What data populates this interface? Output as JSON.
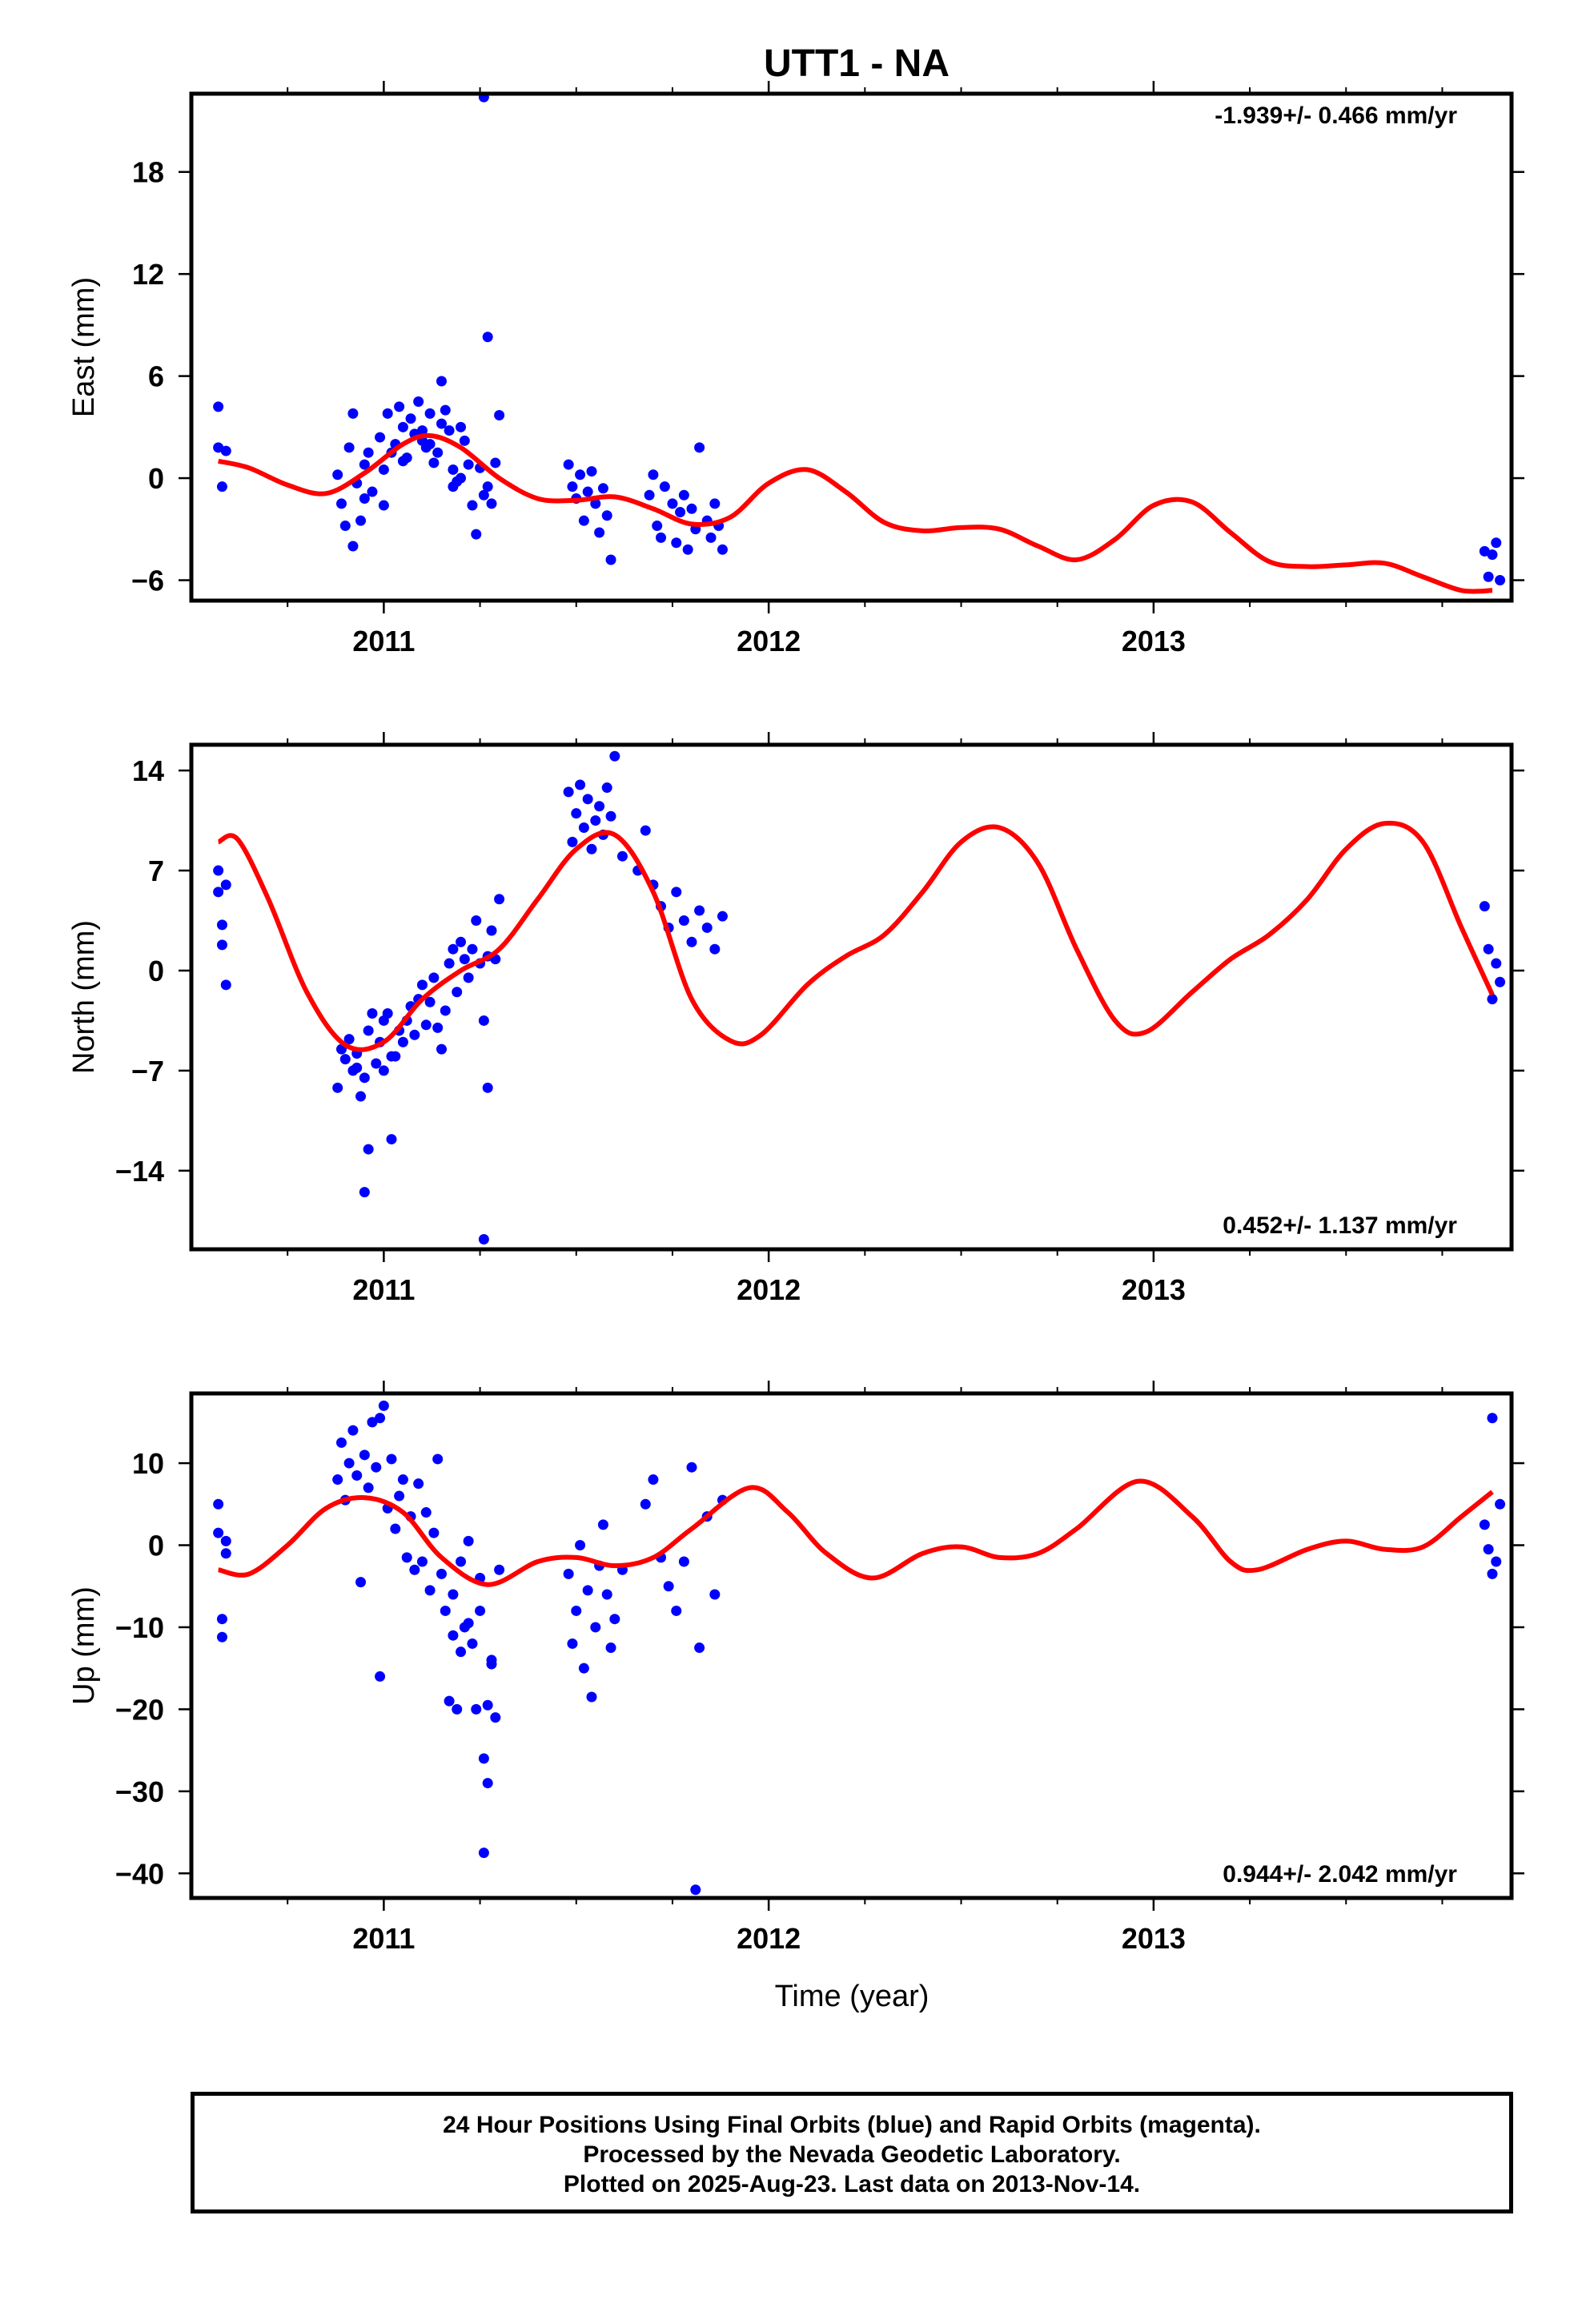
{
  "title": "UTT1 - NA",
  "xlabel": "Time (year)",
  "colors": {
    "points": "#0000ff",
    "model": "#ff0000",
    "axes": "#000000"
  },
  "footer": {
    "line1": "24 Hour Positions Using Final Orbits (blue) and Rapid Orbits (magenta).",
    "line2": "Processed by the Nevada Geodetic Laboratory.",
    "line3": "Plotted on 2025-Aug-23. Last data on 2013-Nov-14."
  },
  "chart_data": [
    {
      "type": "scatter",
      "ylabel": "East (mm)",
      "annotation": "-1.939+/- 0.466 mm/yr",
      "annotation_position": "top-right",
      "xlim": [
        2010.5,
        2013.93
      ],
      "ylim": [
        -7.2,
        22.6
      ],
      "yticks": [
        -6,
        0,
        6,
        12,
        18
      ],
      "xticks": [
        2011,
        2012,
        2013
      ],
      "series": [
        {
          "role": "observations",
          "color": "#0000ff",
          "x": [
            2010.57,
            2010.57,
            2010.58,
            2010.59,
            2010.88,
            2010.89,
            2010.9,
            2010.91,
            2010.92,
            2010.93,
            2010.94,
            2010.95,
            2010.96,
            2010.97,
            2010.99,
            2011.0,
            2011.01,
            2011.02,
            2011.03,
            2011.04,
            2011.05,
            2011.06,
            2011.07,
            2011.08,
            2011.09,
            2011.1,
            2011.11,
            2011.12,
            2011.13,
            2011.14,
            2011.15,
            2011.16,
            2011.17,
            2011.18,
            2011.19,
            2011.2,
            2011.21,
            2011.22,
            2011.23,
            2011.24,
            2011.25,
            2011.26,
            2011.27,
            2011.28,
            2011.29,
            2011.3,
            2011.26,
            2011.27,
            2011.48,
            2011.49,
            2011.5,
            2011.51,
            2011.52,
            2011.53,
            2011.54,
            2011.55,
            2011.56,
            2011.57,
            2011.58,
            2011.59,
            2011.69,
            2011.7,
            2011.71,
            2011.72,
            2011.73,
            2011.75,
            2011.76,
            2011.77,
            2011.78,
            2011.79,
            2011.8,
            2011.81,
            2011.82,
            2011.84,
            2011.85,
            2011.86,
            2011.87,
            2011.88,
            2013.86,
            2013.87,
            2013.88,
            2013.89,
            2013.9,
            2011.0,
            2011.05,
            2011.1,
            2011.15,
            2011.2,
            2010.92,
            2010.95,
            2011.12,
            2011.18
          ],
          "y": [
            1.8,
            4.2,
            -0.5,
            1.6,
            0.2,
            -1.5,
            -2.8,
            1.8,
            -4.0,
            -0.3,
            -2.5,
            0.8,
            1.5,
            -0.8,
            2.4,
            -1.6,
            3.8,
            1.5,
            2.0,
            4.2,
            3.0,
            1.2,
            3.5,
            2.6,
            4.5,
            2.8,
            1.8,
            3.8,
            0.9,
            1.5,
            5.7,
            4.0,
            2.8,
            0.5,
            -0.2,
            3.0,
            2.2,
            0.8,
            -1.6,
            -3.3,
            0.6,
            -1.0,
            -0.5,
            -1.5,
            0.9,
            3.7,
            22.4,
            8.3,
            0.8,
            -0.5,
            -1.2,
            0.2,
            -2.5,
            -0.8,
            0.4,
            -1.5,
            -3.2,
            -0.6,
            -2.2,
            -4.8,
            -1.0,
            0.2,
            -2.8,
            -3.5,
            -0.5,
            -1.5,
            -3.8,
            -2.0,
            -1.0,
            -4.2,
            -1.8,
            -3.0,
            1.8,
            -2.5,
            -3.5,
            -1.5,
            -2.8,
            -4.2,
            -4.3,
            -5.8,
            -4.5,
            -3.8,
            -6.0,
            0.5,
            1.0,
            2.2,
            3.2,
            0.0,
            3.8,
            -1.2,
            2.0,
            -0.5
          ]
        },
        {
          "role": "model",
          "color": "#ff0000",
          "x": [
            2010.57,
            2010.65,
            2010.75,
            2010.85,
            2010.95,
            2011.05,
            2011.12,
            2011.2,
            2011.3,
            2011.4,
            2011.5,
            2011.6,
            2011.7,
            2011.8,
            2011.9,
            2012.0,
            2012.1,
            2012.2,
            2012.3,
            2012.4,
            2012.5,
            2012.6,
            2012.7,
            2012.8,
            2012.9,
            2013.0,
            2013.1,
            2013.2,
            2013.3,
            2013.4,
            2013.5,
            2013.6,
            2013.7,
            2013.8,
            2013.88
          ],
          "y": [
            1.0,
            0.6,
            -0.4,
            -0.9,
            0.3,
            2.0,
            2.5,
            1.8,
            0.0,
            -1.2,
            -1.3,
            -1.1,
            -1.8,
            -2.7,
            -2.3,
            -0.3,
            0.5,
            -0.8,
            -2.6,
            -3.1,
            -2.9,
            -3.0,
            -4.0,
            -4.8,
            -3.6,
            -1.6,
            -1.4,
            -3.2,
            -4.9,
            -5.2,
            -5.1,
            -5.0,
            -5.8,
            -6.6,
            -6.6
          ]
        }
      ]
    },
    {
      "type": "scatter",
      "ylabel": "North (mm)",
      "annotation": "0.452+/- 1.137 mm/yr",
      "annotation_position": "bottom-right",
      "xlim": [
        2010.5,
        2013.93
      ],
      "ylim": [
        -19.5,
        15.8
      ],
      "yticks": [
        -14,
        -7,
        0,
        7,
        14
      ],
      "xticks": [
        2011,
        2012,
        2013
      ],
      "series": [
        {
          "role": "observations",
          "color": "#0000ff",
          "x": [
            2010.57,
            2010.57,
            2010.58,
            2010.58,
            2010.59,
            2010.59,
            2010.88,
            2010.89,
            2010.9,
            2010.91,
            2010.92,
            2010.93,
            2010.94,
            2010.95,
            2010.96,
            2010.97,
            2010.98,
            2010.99,
            2011.0,
            2011.01,
            2011.02,
            2011.03,
            2011.04,
            2011.05,
            2011.06,
            2011.07,
            2011.08,
            2011.09,
            2011.1,
            2011.11,
            2011.12,
            2011.13,
            2011.14,
            2011.15,
            2011.16,
            2011.17,
            2011.18,
            2011.19,
            2011.2,
            2011.21,
            2011.22,
            2011.23,
            2011.24,
            2011.25,
            2011.26,
            2011.27,
            2011.28,
            2011.29,
            2011.3,
            2011.26,
            2011.27,
            2011.48,
            2011.49,
            2011.5,
            2011.51,
            2011.52,
            2011.53,
            2011.54,
            2011.55,
            2011.56,
            2011.57,
            2011.58,
            2011.59,
            2011.6,
            2011.62,
            2011.66,
            2011.68,
            2011.7,
            2011.72,
            2011.74,
            2011.76,
            2011.78,
            2011.8,
            2011.82,
            2011.84,
            2011.86,
            2011.88,
            2013.86,
            2013.87,
            2013.88,
            2013.89,
            2013.9,
            2010.93,
            2010.96,
            2011.0,
            2011.02,
            2010.95
          ],
          "y": [
            7.0,
            5.5,
            3.2,
            1.8,
            6.0,
            -1.0,
            -8.2,
            -5.5,
            -6.2,
            -4.8,
            -7.0,
            -5.8,
            -8.8,
            -15.5,
            -12.5,
            -3.0,
            -6.5,
            -5.0,
            -7.0,
            -3.0,
            -11.8,
            -6.0,
            -4.2,
            -5.0,
            -3.5,
            -2.5,
            -4.5,
            -2.0,
            -1.0,
            -3.8,
            -2.2,
            -0.5,
            -4.0,
            -5.5,
            -2.8,
            0.5,
            1.5,
            -1.5,
            2.0,
            0.8,
            -0.5,
            1.5,
            3.5,
            0.5,
            -3.5,
            -8.2,
            2.8,
            0.8,
            5.0,
            -18.8,
            1.0,
            12.5,
            9.0,
            11.0,
            13.0,
            10.0,
            12.0,
            8.5,
            10.5,
            11.5,
            9.5,
            12.8,
            10.8,
            15.0,
            8.0,
            7.0,
            9.8,
            6.0,
            4.5,
            3.0,
            5.5,
            3.5,
            2.0,
            4.2,
            3.0,
            1.5,
            3.8,
            4.5,
            1.5,
            -2.0,
            0.5,
            -0.8,
            -6.8,
            -4.2,
            -3.5,
            -6.0,
            -7.5
          ]
        },
        {
          "role": "model",
          "color": "#ff0000",
          "x": [
            2010.57,
            2010.62,
            2010.7,
            2010.8,
            2010.9,
            2011.0,
            2011.1,
            2011.2,
            2011.3,
            2011.4,
            2011.5,
            2011.6,
            2011.7,
            2011.8,
            2011.9,
            2011.98,
            2012.1,
            2012.2,
            2012.3,
            2012.4,
            2012.5,
            2012.6,
            2012.7,
            2012.8,
            2012.9,
            2012.98,
            2013.1,
            2013.2,
            2013.3,
            2013.4,
            2013.5,
            2013.6,
            2013.7,
            2013.8,
            2013.88
          ],
          "y": [
            9.0,
            9.2,
            5.0,
            -1.5,
            -5.2,
            -5.0,
            -2.0,
            0.0,
            1.5,
            5.0,
            8.5,
            9.5,
            5.5,
            -2.0,
            -4.9,
            -4.5,
            -1.0,
            1.0,
            2.5,
            5.5,
            9.0,
            10.0,
            7.5,
            1.5,
            -3.5,
            -4.3,
            -1.5,
            0.8,
            2.5,
            5.0,
            8.5,
            10.3,
            9.0,
            3.0,
            -1.7
          ]
        }
      ]
    },
    {
      "type": "scatter",
      "ylabel": "Up (mm)",
      "xlabel": "Time (year)",
      "annotation": "0.944+/- 2.042 mm/yr",
      "annotation_position": "bottom-right",
      "xlim": [
        2010.5,
        2013.93
      ],
      "ylim": [
        -43,
        18.5
      ],
      "yticks": [
        -40,
        -30,
        -20,
        -10,
        0,
        10
      ],
      "xticks": [
        2011,
        2012,
        2013
      ],
      "series": [
        {
          "role": "observations",
          "color": "#0000ff",
          "x": [
            2010.57,
            2010.57,
            2010.58,
            2010.58,
            2010.59,
            2010.59,
            2010.88,
            2010.89,
            2010.9,
            2010.91,
            2010.92,
            2010.93,
            2010.94,
            2010.95,
            2010.96,
            2010.97,
            2010.98,
            2010.99,
            2011.0,
            2011.01,
            2011.02,
            2011.03,
            2011.04,
            2011.05,
            2011.06,
            2011.07,
            2011.08,
            2011.09,
            2011.1,
            2011.11,
            2011.12,
            2011.13,
            2011.14,
            2011.15,
            2011.16,
            2011.17,
            2011.18,
            2011.19,
            2011.2,
            2011.21,
            2011.22,
            2011.23,
            2011.24,
            2011.25,
            2011.26,
            2011.27,
            2011.28,
            2011.29,
            2011.3,
            2011.26,
            2011.27,
            2011.48,
            2011.49,
            2011.5,
            2011.51,
            2011.52,
            2011.53,
            2011.54,
            2011.55,
            2011.56,
            2011.57,
            2011.58,
            2011.59,
            2011.6,
            2011.62,
            2011.68,
            2011.7,
            2011.72,
            2011.74,
            2011.76,
            2011.78,
            2011.8,
            2011.82,
            2011.84,
            2011.86,
            2011.88,
            2011.81,
            2013.86,
            2013.87,
            2013.88,
            2013.89,
            2013.9,
            2013.88,
            2010.99,
            2011.18,
            2011.2,
            2011.22,
            2011.25,
            2011.28
          ],
          "y": [
            1.5,
            5.0,
            -9.0,
            -11.2,
            0.5,
            -1.0,
            8.0,
            12.5,
            5.5,
            10.0,
            14.0,
            8.5,
            -4.5,
            11.0,
            7.0,
            15.0,
            9.5,
            15.5,
            17.0,
            4.5,
            10.5,
            2.0,
            6.0,
            8.0,
            -1.5,
            3.5,
            -3.0,
            7.5,
            -2.0,
            4.0,
            -5.5,
            1.5,
            10.5,
            -3.5,
            -8.0,
            -19.0,
            -6.0,
            -20.0,
            -2.0,
            -10.0,
            0.5,
            -12.0,
            -20.0,
            -4.0,
            -26.0,
            -29.0,
            -14.5,
            -21.0,
            -3.0,
            -37.5,
            -19.5,
            -3.5,
            -12.0,
            -8.0,
            0.0,
            -15.0,
            -5.5,
            -18.5,
            -10.0,
            -2.5,
            2.5,
            -6.0,
            -12.5,
            -9.0,
            -3.0,
            5.0,
            8.0,
            -1.5,
            -5.0,
            -8.0,
            -2.0,
            9.5,
            -12.5,
            3.5,
            -6.0,
            5.5,
            -42.0,
            2.5,
            -0.5,
            -3.5,
            -2.0,
            5.0,
            15.5,
            -16.0,
            -11.0,
            -13.0,
            -9.5,
            -8.0,
            -14.0
          ]
        },
        {
          "role": "model",
          "color": "#ff0000",
          "x": [
            2010.57,
            2010.65,
            2010.75,
            2010.85,
            2010.95,
            2011.05,
            2011.15,
            2011.27,
            2011.4,
            2011.5,
            2011.6,
            2011.7,
            2011.8,
            2011.95,
            2012.05,
            2012.15,
            2012.27,
            2012.4,
            2012.5,
            2012.6,
            2012.7,
            2012.8,
            2012.96,
            2013.1,
            2013.2,
            2013.27,
            2013.4,
            2013.5,
            2013.6,
            2013.7,
            2013.8,
            2013.88
          ],
          "y": [
            -3.0,
            -3.5,
            0.0,
            4.5,
            5.8,
            4.0,
            -1.5,
            -4.8,
            -2.0,
            -1.5,
            -2.5,
            -1.5,
            2.0,
            7.0,
            4.0,
            -1.0,
            -4.0,
            -1.0,
            -0.2,
            -1.5,
            -1.0,
            2.0,
            7.8,
            3.5,
            -2.0,
            -3.0,
            -0.5,
            0.5,
            -0.5,
            -0.2,
            3.5,
            6.5
          ]
        }
      ]
    }
  ]
}
